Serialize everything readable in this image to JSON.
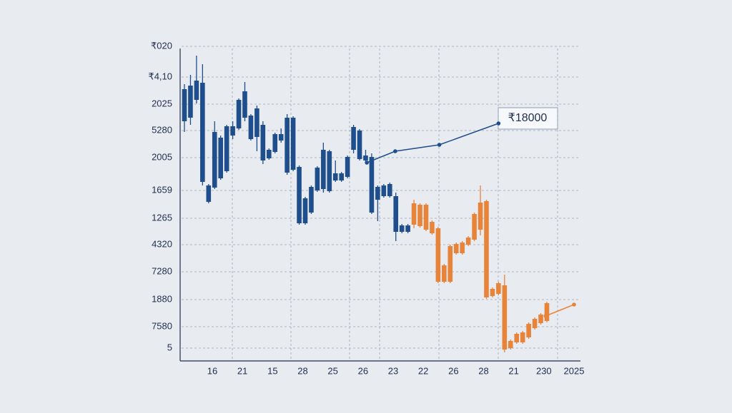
{
  "chart_data": {
    "type": "candlestick",
    "y_axis_labels": [
      "₹020",
      "₹4,10",
      "2025",
      "5280",
      "2005",
      "1659",
      "1265",
      "4320",
      "7280",
      "1880",
      "7580",
      "5"
    ],
    "categories": [
      "16",
      "21",
      "15",
      "28",
      "25",
      "26",
      "23",
      "22",
      "26",
      "28",
      "21",
      "230",
      "2025"
    ],
    "ylim": [
      0,
      426
    ],
    "xlim": [
      0,
      64.5
    ],
    "grid": true,
    "series": [
      {
        "color": "#1f4e8c",
        "x": [
          0,
          1,
          2,
          3,
          4,
          5,
          6,
          7,
          8,
          9,
          10,
          11,
          12,
          13,
          14,
          15,
          16,
          17,
          18,
          19,
          20,
          21,
          22,
          23,
          24,
          25,
          26,
          27,
          28,
          29,
          30,
          31,
          32,
          33,
          34,
          35,
          36,
          37
        ],
        "open": [
          369,
          374,
          381,
          378,
          234,
          309,
          301,
          317,
          317,
          354,
          366,
          332,
          342,
          319,
          284,
          306,
          306,
          329,
          329,
          260,
          216,
          232,
          259,
          284,
          282,
          251,
          251,
          274,
          316,
          311,
          276,
          274,
          232,
          234,
          236,
          219,
          178,
          178
        ],
        "high": [
          376,
          389,
          416,
          404,
          236,
          324,
          304,
          319,
          324,
          356,
          379,
          334,
          346,
          324,
          286,
          308,
          314,
          334,
          331,
          262,
          218,
          234,
          261,
          294,
          284,
          269,
          253,
          276,
          319,
          313,
          284,
          279,
          234,
          236,
          238,
          224,
          180,
          180
        ],
        "low": [
          309,
          319,
          349,
          234,
          209,
          229,
          242,
          252,
          299,
          312,
          324,
          297,
          282,
          264,
          270,
          279,
          294,
          249,
          254,
          179,
          179,
          194,
          225,
          224,
          224,
          239,
          239,
          244,
          279,
          269,
          267,
          194,
          184,
          217,
          217,
          156,
          167,
          167
        ],
        "close": [
          324,
          329,
          354,
          239,
          211,
          231,
          244,
          254,
          304,
          314,
          329,
          299,
          302,
          269,
          272,
          281,
          297,
          252,
          256,
          181,
          181,
          196,
          227,
          229,
          226,
          241,
          241,
          246,
          284,
          271,
          269,
          196,
          214,
          219,
          219,
          169,
          169,
          169
        ]
      },
      {
        "color": "#e8843a",
        "x": [
          38,
          39,
          40,
          41,
          42,
          43,
          44,
          45,
          46,
          47,
          48,
          49,
          50,
          51,
          52,
          53,
          54,
          55,
          56,
          57,
          58,
          59,
          60
        ],
        "open": [
          209,
          207,
          207,
          183,
          174,
          122,
          149,
          152,
          154,
          161,
          194,
          210,
          212,
          89,
          97,
          94,
          16,
          26,
          28,
          40,
          47,
          53,
          69
        ],
        "high": [
          214,
          209,
          209,
          185,
          176,
          124,
          151,
          154,
          156,
          163,
          196,
          234,
          214,
          91,
          99,
          109,
          18,
          28,
          30,
          42,
          49,
          55,
          71
        ],
        "low": [
          174,
          175,
          170,
          165,
          97,
          97,
          97,
          137,
          137,
          149,
          156,
          164,
          75,
          77,
          80,
          0,
          4,
          12,
          12,
          19,
          32,
          39,
          42
        ],
        "close": [
          179,
          177,
          172,
          167,
          99,
          99,
          99,
          139,
          139,
          151,
          158,
          172,
          77,
          79,
          82,
          4,
          6,
          14,
          14,
          21,
          34,
          41,
          44
        ]
      }
    ],
    "lines": [
      {
        "color": "#1f4e8c",
        "x": [
          30.2,
          34.9,
          42.2,
          52
        ],
        "values": [
          266,
          282,
          291,
          321
        ]
      },
      {
        "color": "#e8843a",
        "x": [
          59.8,
          64.5
        ],
        "values": [
          51,
          67
        ]
      }
    ],
    "annotation": "₹18000"
  }
}
